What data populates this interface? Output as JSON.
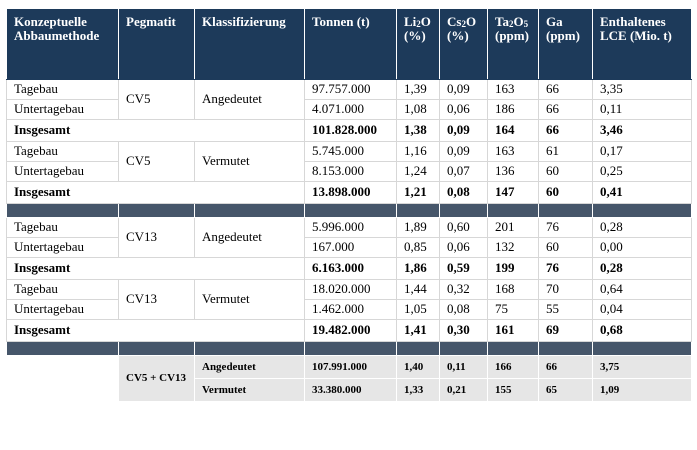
{
  "headers": {
    "method": "Konzeptuelle Abbaumethode",
    "pegmatit": "Pegmatit",
    "klassifizierung": "Klassifizierung",
    "tonnen": "Tonnen (t)",
    "li2o_main": "Li",
    "li2o_sub": "2",
    "li2o_tail": "O",
    "li2o_unit": "(%)",
    "cs2o_main": "Cs",
    "cs2o_sub": "2",
    "cs2o_tail": "O",
    "cs2o_unit": "(%)",
    "ta2o5_a": "Ta",
    "ta2o5_sub1": "2",
    "ta2o5_b": "O",
    "ta2o5_sub2": "5",
    "ta2o5_unit": "(ppm)",
    "ga": "Ga (ppm)",
    "lce": "Enthaltenes LCE (Mio. t)"
  },
  "blocks": [
    {
      "pegmatit": "CV5",
      "klass": "Angedeutet",
      "rows": [
        {
          "method": "Tagebau",
          "tonnen": "97.757.000",
          "li2o": "1,39",
          "cs2o": "0,09",
          "ta2o5": "163",
          "ga": "66",
          "lce": "3,35"
        },
        {
          "method": "Untertagebau",
          "tonnen": "4.071.000",
          "li2o": "1,08",
          "cs2o": "0,06",
          "ta2o5": "186",
          "ga": "66",
          "lce": "0,11"
        }
      ],
      "total": {
        "label": "Insgesamt",
        "tonnen": "101.828.000",
        "li2o": "1,38",
        "cs2o": "0,09",
        "ta2o5": "164",
        "ga": "66",
        "lce": "3,46"
      }
    },
    {
      "pegmatit": "CV5",
      "klass": "Vermutet",
      "rows": [
        {
          "method": "Tagebau",
          "tonnen": "5.745.000",
          "li2o": "1,16",
          "cs2o": "0,09",
          "ta2o5": "163",
          "ga": "61",
          "lce": "0,17"
        },
        {
          "method": "Untertagebau",
          "tonnen": "8.153.000",
          "li2o": "1,24",
          "cs2o": "0,07",
          "ta2o5": "136",
          "ga": "60",
          "lce": "0,25"
        }
      ],
      "total": {
        "label": "Insgesamt",
        "tonnen": "13.898.000",
        "li2o": "1,21",
        "cs2o": "0,08",
        "ta2o5": "147",
        "ga": "60",
        "lce": "0,41"
      }
    },
    {
      "pegmatit": "CV13",
      "klass": "Angedeutet",
      "rows": [
        {
          "method": "Tagebau",
          "tonnen": "5.996.000",
          "li2o": "1,89",
          "cs2o": "0,60",
          "ta2o5": "201",
          "ga": "76",
          "lce": "0,28"
        },
        {
          "method": "Untertagebau",
          "tonnen": "167.000",
          "li2o": "0,85",
          "cs2o": "0,06",
          "ta2o5": "132",
          "ga": "60",
          "lce": "0,00"
        }
      ],
      "total": {
        "label": "Insgesamt",
        "tonnen": "6.163.000",
        "li2o": "1,86",
        "cs2o": "0,59",
        "ta2o5": "199",
        "ga": "76",
        "lce": "0,28"
      }
    },
    {
      "pegmatit": "CV13",
      "klass": "Vermutet",
      "rows": [
        {
          "method": "Tagebau",
          "tonnen": "18.020.000",
          "li2o": "1,44",
          "cs2o": "0,32",
          "ta2o5": "168",
          "ga": "70",
          "lce": "0,64"
        },
        {
          "method": "Untertagebau",
          "tonnen": "1.462.000",
          "li2o": "1,05",
          "cs2o": "0,08",
          "ta2o5": "75",
          "ga": "55",
          "lce": "0,04"
        }
      ],
      "total": {
        "label": "Insgesamt",
        "tonnen": "19.482.000",
        "li2o": "1,41",
        "cs2o": "0,30",
        "ta2o5": "161",
        "ga": "69",
        "lce": "0,68"
      }
    }
  ],
  "summary": {
    "pegmatit": "CV5 + CV13",
    "rows": [
      {
        "klass": "Angedeutet",
        "tonnen": "107.991.000",
        "li2o": "1,40",
        "cs2o": "0,11",
        "ta2o5": "166",
        "ga": "66",
        "lce": "3,75"
      },
      {
        "klass": "Vermutet",
        "tonnen": "33.380.000",
        "li2o": "1,33",
        "cs2o": "0,21",
        "ta2o5": "155",
        "ga": "65",
        "lce": "1,09"
      }
    ]
  }
}
